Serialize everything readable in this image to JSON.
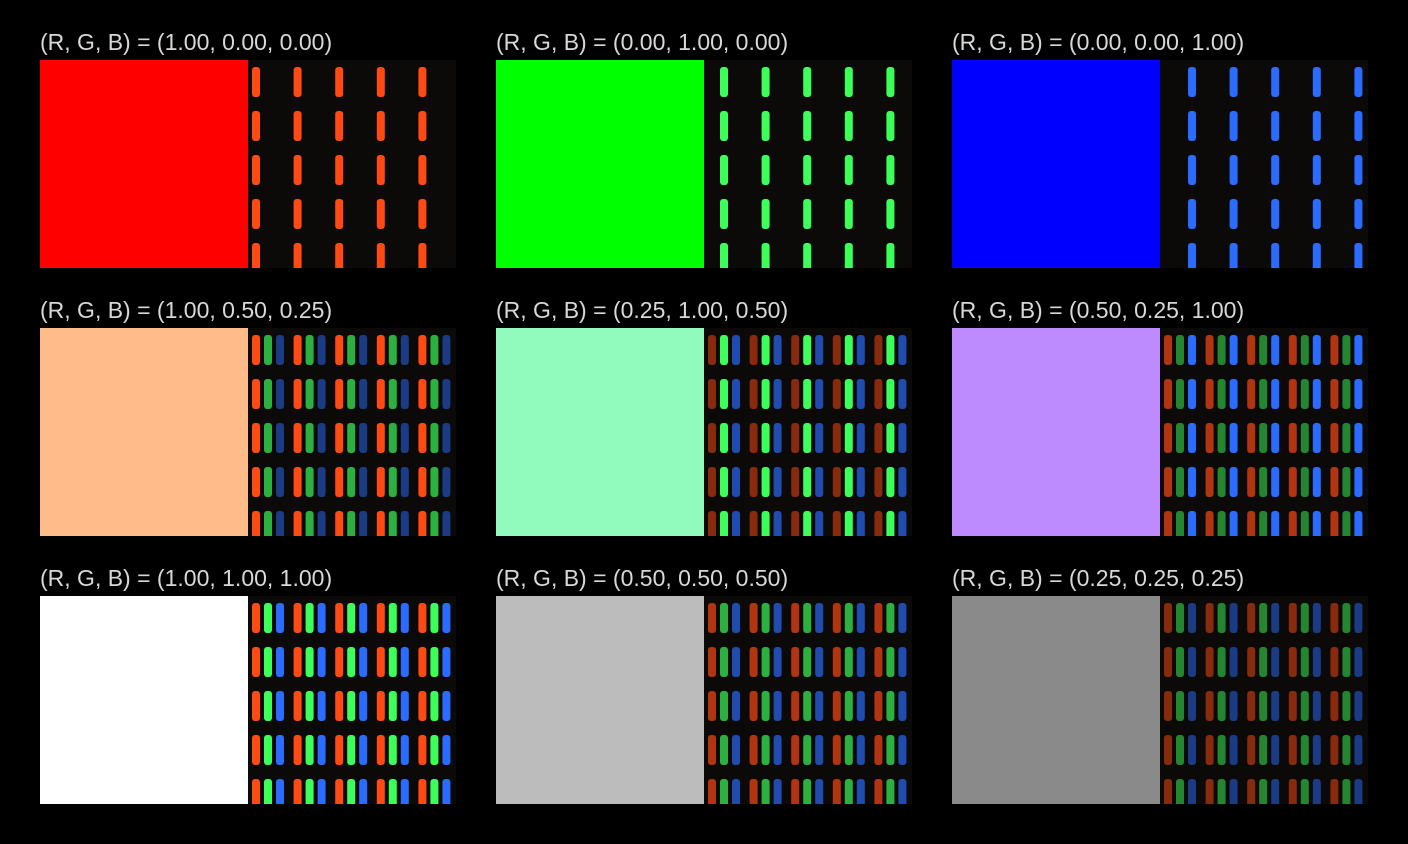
{
  "cells": [
    {
      "label": "(R, G, B) = (1.00, 0.00, 0.00)",
      "rgb": [
        1.0,
        0.0,
        0.0
      ],
      "swatch_color": "#ff0000"
    },
    {
      "label": "(R, G, B) = (0.00, 1.00, 0.00)",
      "rgb": [
        0.0,
        1.0,
        0.0
      ],
      "swatch_color": "#00ff00"
    },
    {
      "label": "(R, G, B) = (0.00, 0.00, 1.00)",
      "rgb": [
        0.0,
        0.0,
        1.0
      ],
      "swatch_color": "#0000ff"
    },
    {
      "label": "(R, G, B) = (1.00, 0.50, 0.25)",
      "rgb": [
        1.0,
        0.5,
        0.25
      ],
      "swatch_color": "#ffbb8a"
    },
    {
      "label": "(R, G, B) = (0.25, 1.00, 0.50)",
      "rgb": [
        0.25,
        1.0,
        0.5
      ],
      "swatch_color": "#90fbbd"
    },
    {
      "label": "(R, G, B) = (0.50, 0.25, 1.00)",
      "rgb": [
        0.5,
        0.25,
        1.0
      ],
      "swatch_color": "#bd8bfd"
    },
    {
      "label": "(R, G, B) = (1.00, 1.00, 1.00)",
      "rgb": [
        1.0,
        1.0,
        1.0
      ],
      "swatch_color": "#ffffff"
    },
    {
      "label": "(R, G, B) = (0.50, 0.50, 0.50)",
      "rgb": [
        0.5,
        0.5,
        0.5
      ],
      "swatch_color": "#bcbcbc"
    },
    {
      "label": "(R, G, B) = (0.25, 0.25, 0.25)",
      "rgb": [
        0.25,
        0.25,
        0.25
      ],
      "swatch_color": "#8a8a8a"
    }
  ],
  "subpixel_colors": {
    "red": "#ff4a14",
    "green": "#3cff5a",
    "blue": "#2b6bff"
  }
}
